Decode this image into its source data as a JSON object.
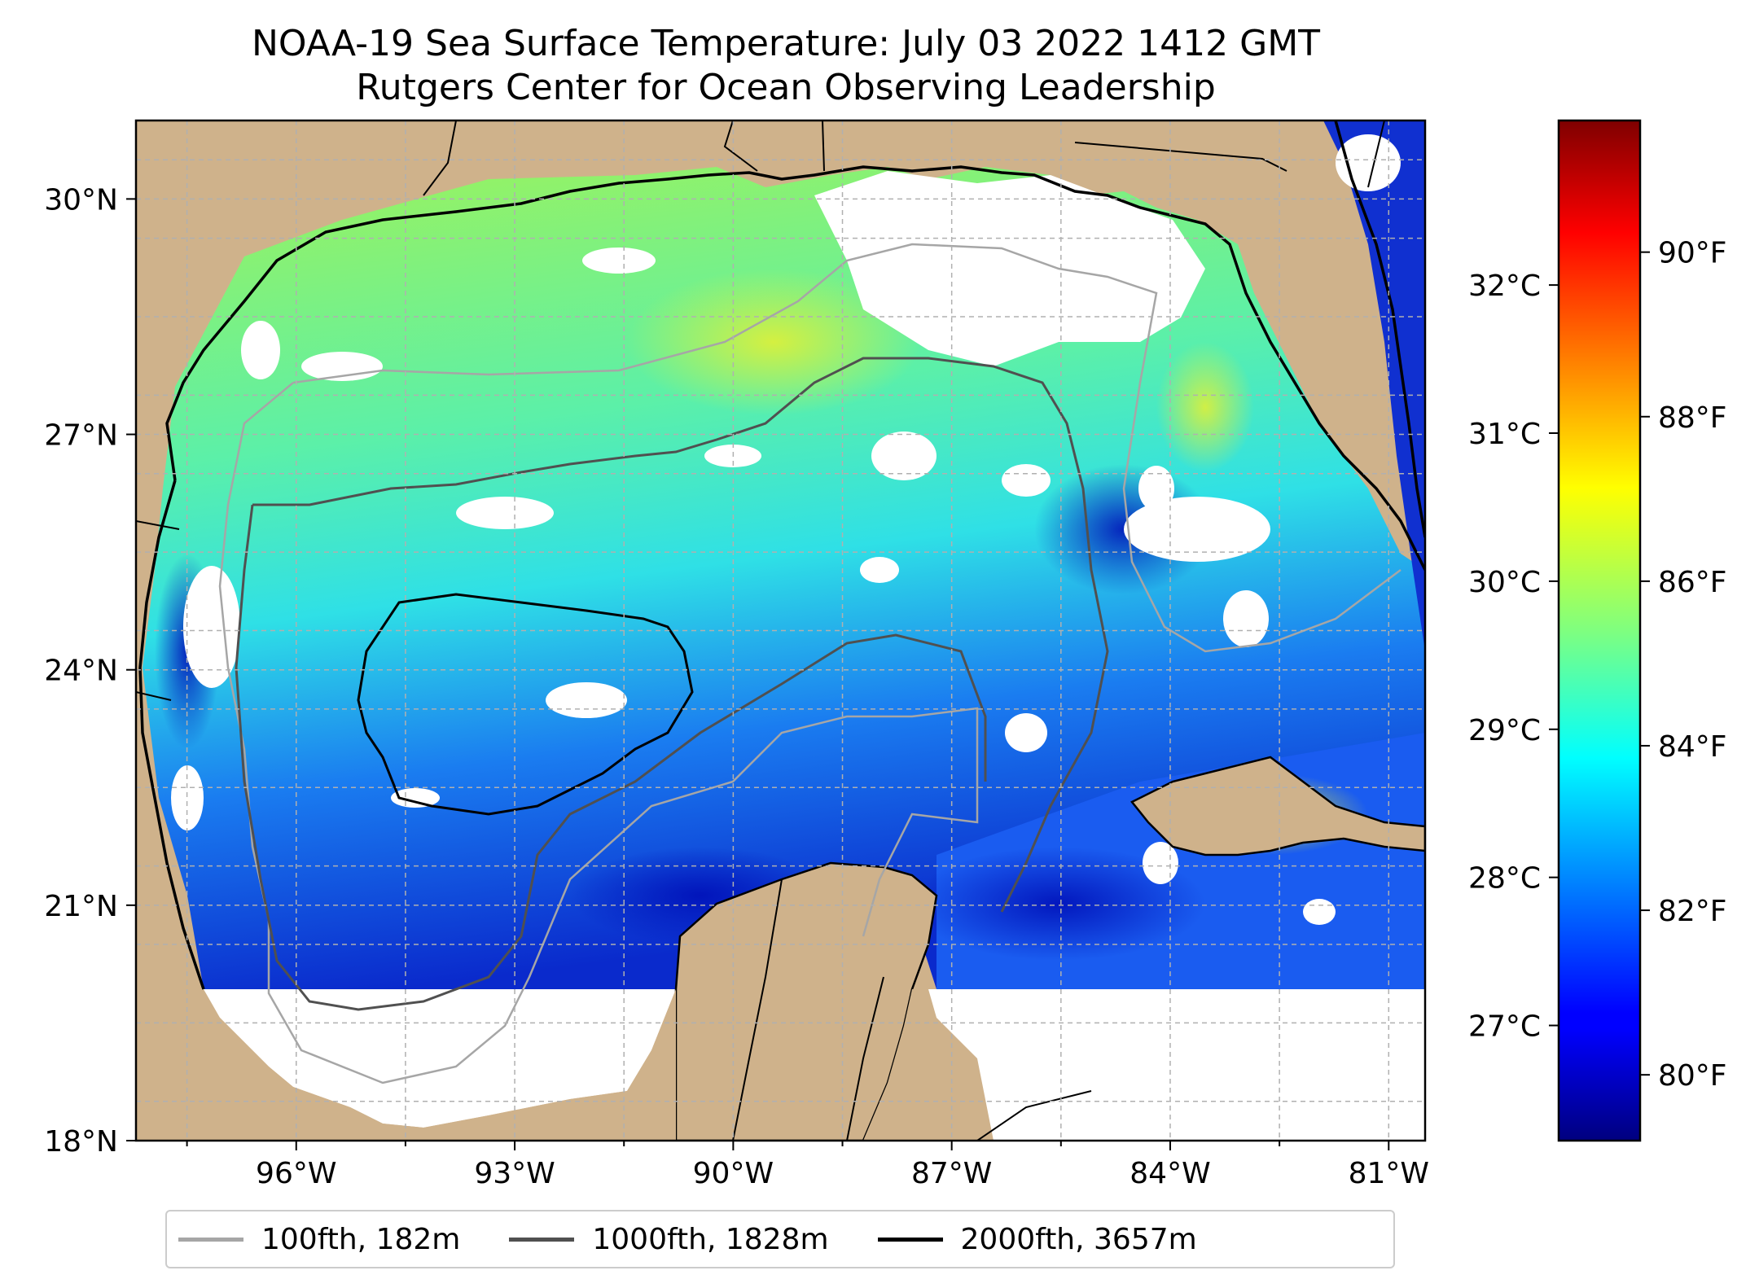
{
  "title": {
    "line1": "NOAA-19 Sea Surface Temperature: July 03 2022 1412 GMT",
    "line2": "Rutgers Center for Ocean Observing Leadership"
  },
  "map": {
    "extent": {
      "lon_min": -98.2,
      "lon_max": -80.5,
      "lat_min": 18.0,
      "lat_max": 31.0
    },
    "lon_ticks": [
      {
        "value": -96,
        "label": "96°W"
      },
      {
        "value": -93,
        "label": "93°W"
      },
      {
        "value": -90,
        "label": "90°W"
      },
      {
        "value": -87,
        "label": "87°W"
      },
      {
        "value": -84,
        "label": "84°W"
      },
      {
        "value": -81,
        "label": "81°W"
      }
    ],
    "lat_ticks": [
      {
        "value": 30,
        "label": "30°N"
      },
      {
        "value": 27,
        "label": "27°N"
      },
      {
        "value": 24,
        "label": "24°N"
      },
      {
        "value": 21,
        "label": "21°N"
      },
      {
        "value": 18,
        "label": "18°N"
      }
    ],
    "colors": {
      "land": "#cfb28b",
      "coast": "#000000",
      "grid": "#b0b0b0",
      "no_data": "#ffffff"
    },
    "data_southern_limit_lat": 20.0
  },
  "colorbar": {
    "colormap": "jet",
    "celsius_ticks": [
      {
        "value": 32,
        "label": "32°C"
      },
      {
        "value": 31,
        "label": "31°C"
      },
      {
        "value": 30,
        "label": "30°C"
      },
      {
        "value": 29,
        "label": "29°C"
      },
      {
        "value": 28,
        "label": "28°C"
      },
      {
        "value": 27,
        "label": "27°C"
      }
    ],
    "fahrenheit_ticks": [
      {
        "value": 90,
        "label": "90°F"
      },
      {
        "value": 88,
        "label": "88°F"
      },
      {
        "value": 86,
        "label": "86°F"
      },
      {
        "value": 84,
        "label": "84°F"
      },
      {
        "value": 82,
        "label": "82°F"
      },
      {
        "value": 80,
        "label": "80°F"
      }
    ],
    "range_f": [
      79.2,
      91.6
    ]
  },
  "legend": {
    "items": [
      {
        "label": "100fth, 182m",
        "color": "#a6a6a6"
      },
      {
        "label": "1000fth, 1828m",
        "color": "#505050"
      },
      {
        "label": "2000fth, 3657m",
        "color": "#000000"
      }
    ]
  }
}
